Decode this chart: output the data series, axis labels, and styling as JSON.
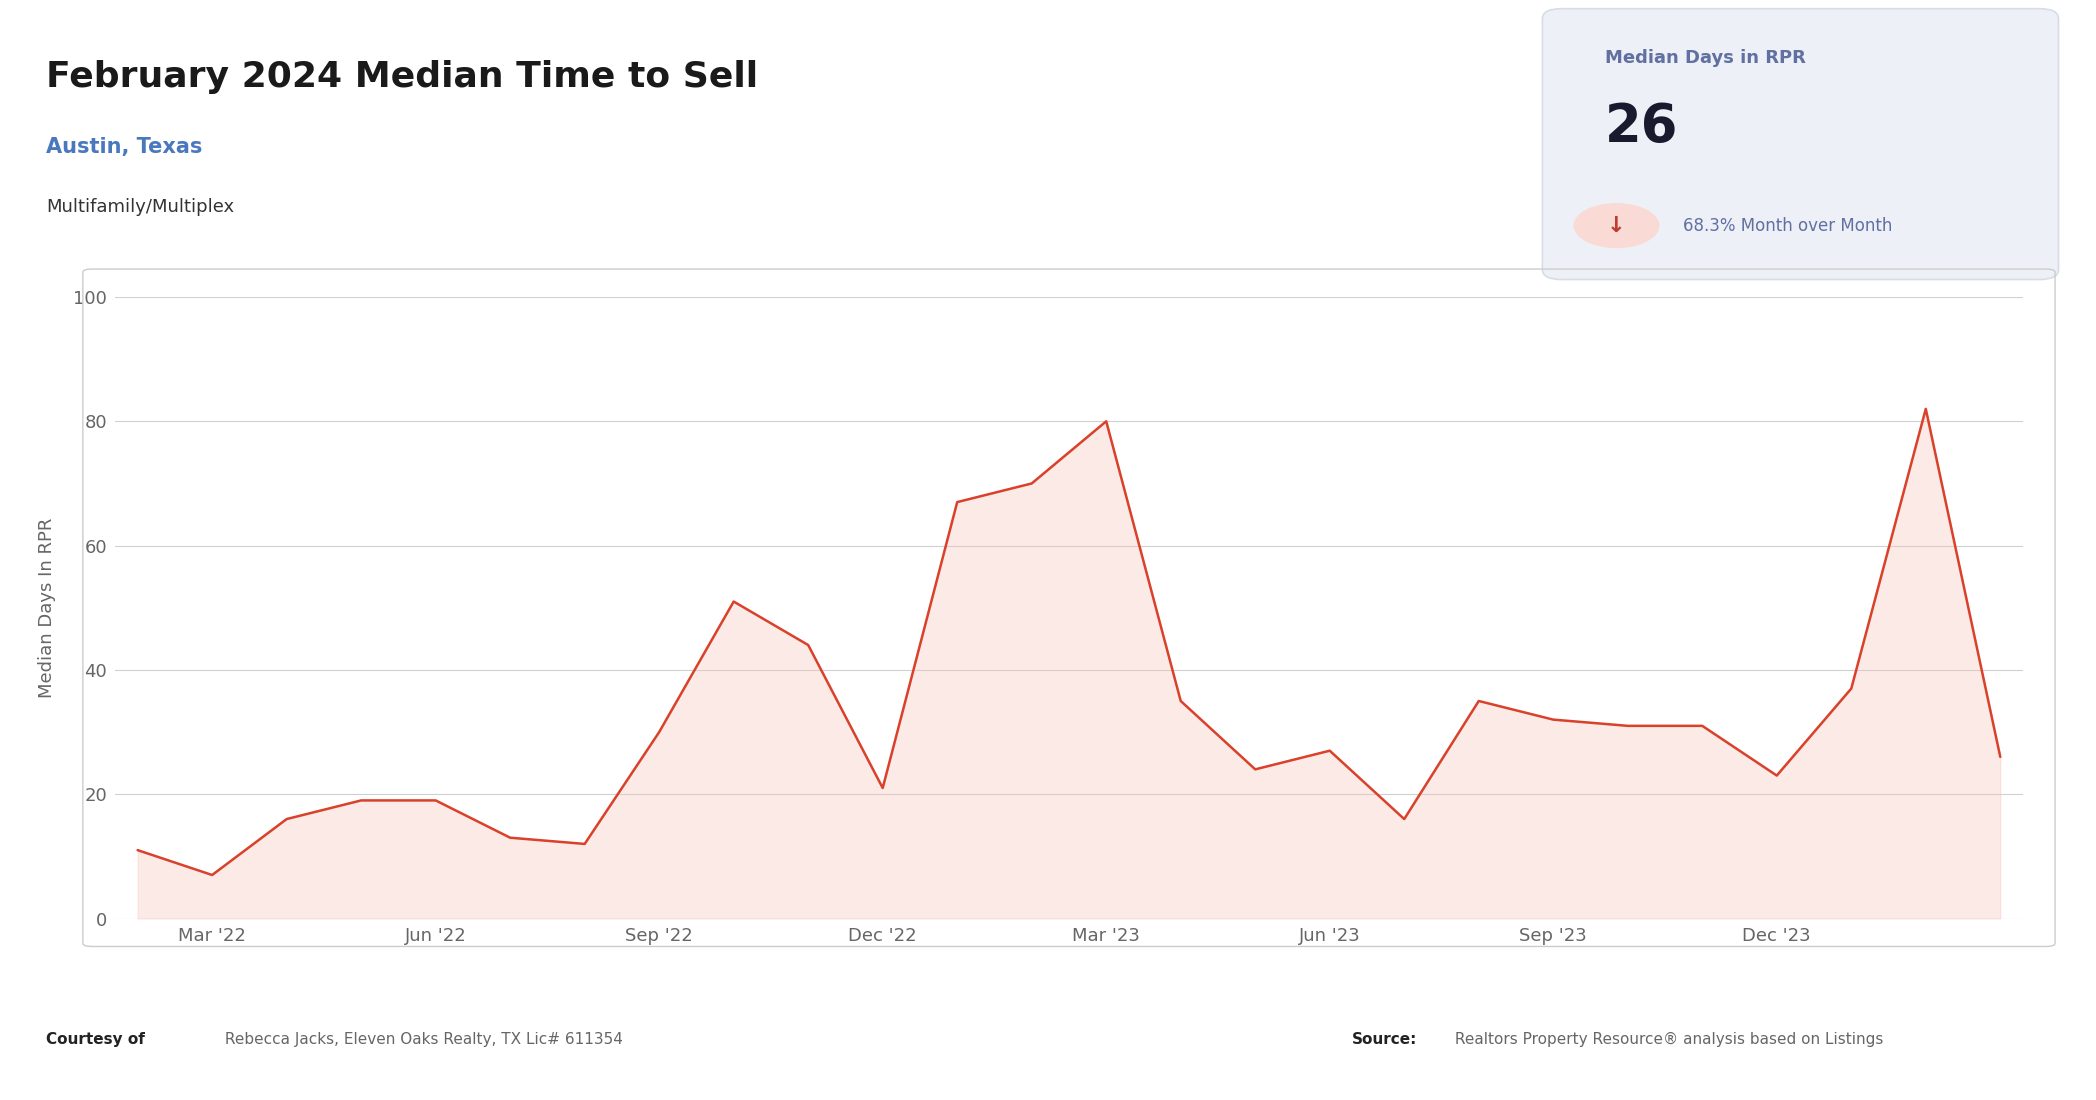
{
  "title": "February 2024 Median Time to Sell",
  "subtitle": "Austin, Texas",
  "subtitle2": "Multifamily/Multiplex",
  "ylabel": "Median Days In RPR",
  "stat_label": "Median Days in RPR",
  "stat_value": "26",
  "stat_change": "68.3% Month over Month",
  "footer_left_bold": "Courtesy of",
  "footer_left": " Rebecca Jacks, Eleven Oaks Realty, TX Lic# 611354",
  "footer_right_bold": "Source:",
  "footer_right": " Realtors Property Resource® analysis based on Listings",
  "line_color": "#d9412a",
  "fill_color": "#f7c4bc",
  "fill_alpha": 0.35,
  "background_color": "#ffffff",
  "chart_bg": "#ffffff",
  "y_values": [
    11,
    7,
    16,
    19,
    19,
    13,
    12,
    30,
    51,
    44,
    21,
    67,
    70,
    80,
    35,
    24,
    27,
    16,
    35,
    32,
    31,
    31,
    23,
    37,
    82,
    26
  ],
  "x_tick_positions": [
    1,
    4,
    7,
    10,
    13,
    16,
    19,
    22
  ],
  "x_tick_labels": [
    "Mar '22",
    "Jun '22",
    "Sep '22",
    "Dec '22",
    "Mar '23",
    "Jun '23",
    "Sep '23",
    "Dec '23"
  ],
  "ylim": [
    0,
    100
  ],
  "yticks": [
    0,
    20,
    40,
    60,
    80,
    100
  ],
  "stat_box_color": "#eef0f7",
  "stat_box_border": "#d8dce8",
  "stat_label_color": "#6070a0",
  "stat_value_color": "#1a1a2e",
  "arrow_circle_color": "#fadad4",
  "arrow_color": "#c0392b",
  "title_color": "#1a1a1a",
  "subtitle_color": "#4a78be",
  "subtitle2_color": "#333333",
  "grid_color": "#d0d0d0",
  "tick_color": "#666666",
  "footer_bold_color": "#222222",
  "footer_color": "#666666",
  "chart_border_color": "#cccccc"
}
